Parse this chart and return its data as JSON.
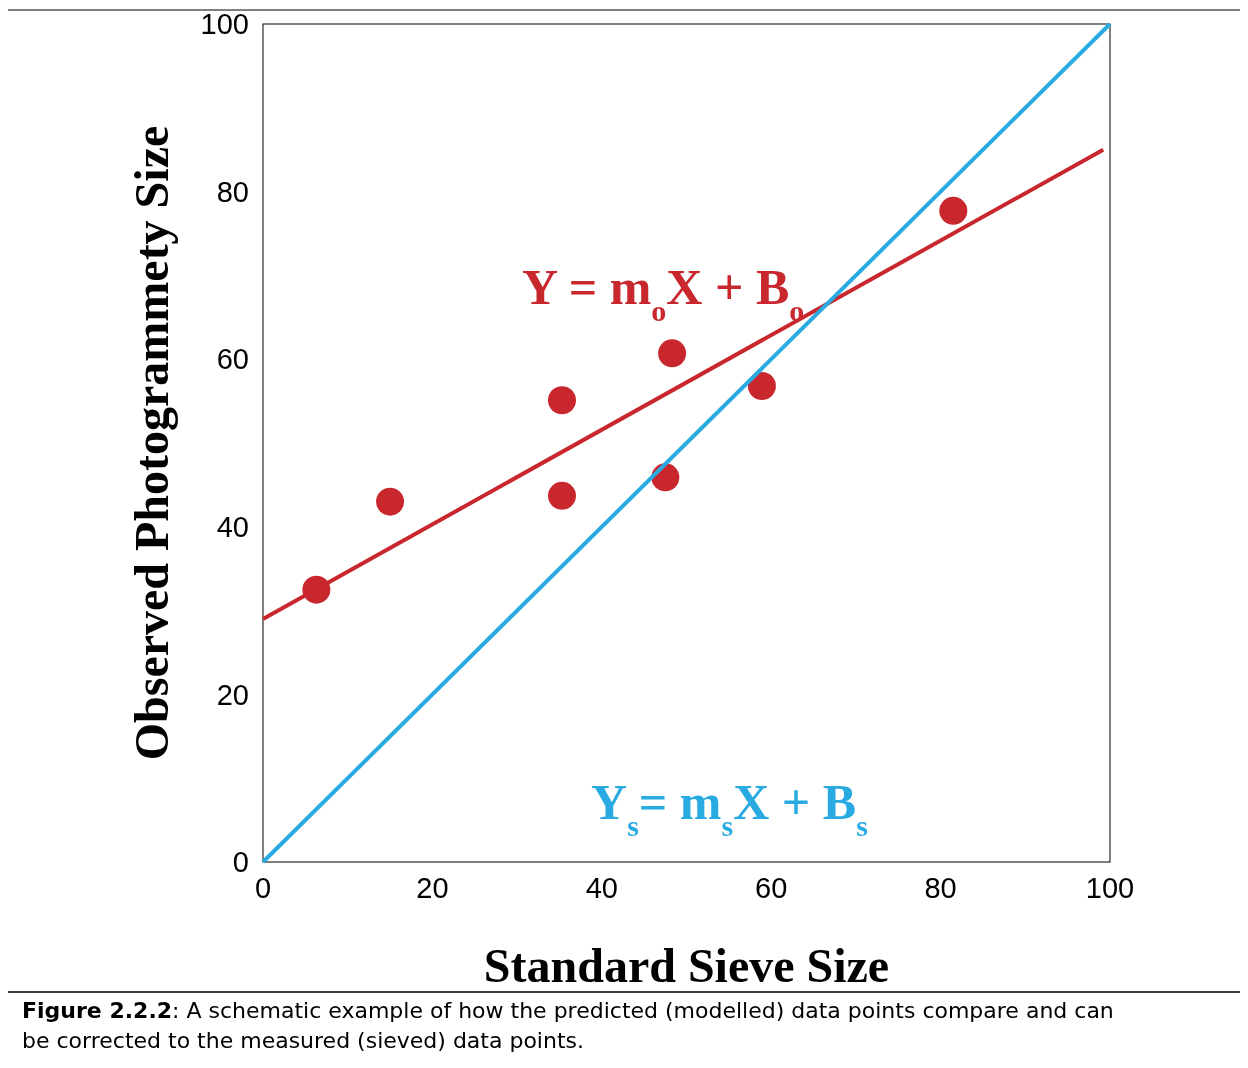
{
  "chart_data": {
    "type": "scatter",
    "xlabel": "Standard Sieve Size",
    "ylabel": "Observed Photogrammety Size",
    "xlim": [
      0,
      100
    ],
    "ylim": [
      0,
      100
    ],
    "xticks": [
      0,
      20,
      40,
      60,
      80,
      100
    ],
    "yticks": [
      0,
      20,
      40,
      60,
      80,
      100
    ],
    "grid": false,
    "series": [
      {
        "marker": "circle",
        "color": "#c8272d",
        "x": [
          6.3,
          15,
          35.3,
          35.3,
          48.3,
          47.5,
          58.9,
          81.5
        ],
        "values": [
          32.5,
          43,
          55.1,
          43.7,
          60.7,
          45.9,
          56.8,
          77.7
        ]
      },
      {
        "type": "line",
        "name": "Y = m$_{o}$X + B$_{o}$",
        "color": "#c8272d",
        "x": [
          0,
          99.2
        ],
        "values": [
          29,
          85
        ]
      },
      {
        "type": "line",
        "name": "Y$_{s}$= m$_{s}$X + B$_{s}$",
        "color": "#29abe2",
        "x": [
          0,
          100
        ],
        "values": [
          0,
          100
        ]
      }
    ],
    "annotations": [
      "Figure 2.2.2: A schematic example of how the predicted (modelled) data points compare and can be corrected to the measured (sieved) data points."
    ]
  }
}
